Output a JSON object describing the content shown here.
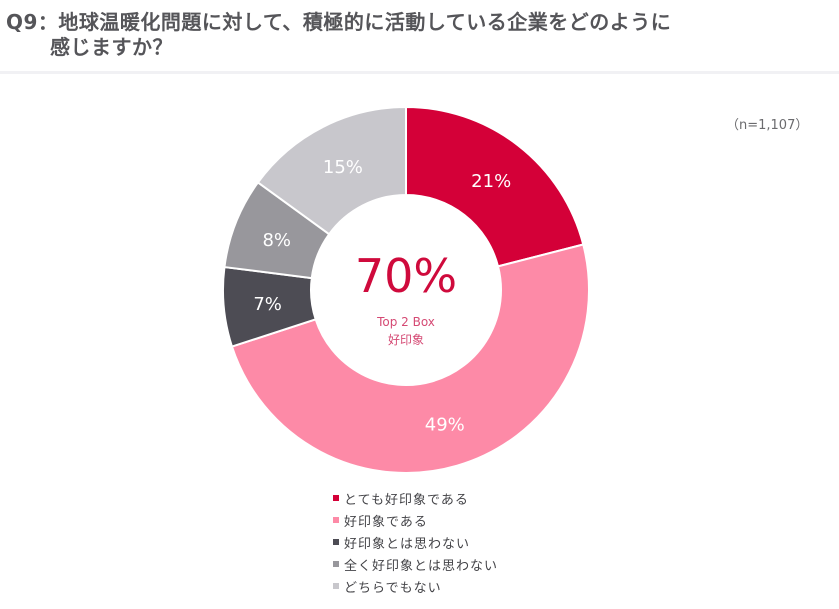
{
  "header": {
    "title_line1": "Q9：地球温暖化問題に対して、積極的に活動している企業をどのように",
    "title_line2": "感じますか？"
  },
  "sample_size": "（n=1,107）",
  "center": {
    "value": "70%",
    "line1": "Top 2 Box",
    "line2": "好印象"
  },
  "segments": [
    {
      "label": "とても好印象である",
      "value": 21,
      "text": "21%",
      "color": "#d40038"
    },
    {
      "label": "好印象である",
      "value": 49,
      "text": "49%",
      "color": "#fd8aa7"
    },
    {
      "label": "好印象とは思わない",
      "value": 7,
      "text": "7%",
      "color": "#4d4c54"
    },
    {
      "label": "全く好印象とは思わない",
      "value": 8,
      "text": "8%",
      "color": "#98979c"
    },
    {
      "label": "どちらでもない",
      "value": 15,
      "text": "15%",
      "color": "#c8c7cc"
    }
  ],
  "legend": [
    {
      "label": "とても好印象である",
      "color": "#d40038"
    },
    {
      "label": "好印象である",
      "color": "#fd8aa7"
    },
    {
      "label": "好印象とは思わない",
      "color": "#4d4c54"
    },
    {
      "label": "全く好印象とは思わない",
      "color": "#98979c"
    },
    {
      "label": "どちらでもない",
      "color": "#c8c7cc"
    }
  ],
  "chart_data": {
    "type": "pie",
    "subtype": "donut",
    "title": "Q9：地球温暖化問題に対して、積極的に活動している企業をどのように感じますか？",
    "annotation": "（n=1,107）",
    "center_text": [
      "70%",
      "Top 2 Box",
      "好印象"
    ],
    "categories": [
      "とても好印象である",
      "好印象である",
      "好印象とは思わない",
      "全く好印象とは思わない",
      "どちらでもない"
    ],
    "values": [
      21,
      49,
      7,
      8,
      15
    ],
    "unit": "%",
    "colors": [
      "#d40038",
      "#fd8aa7",
      "#4d4c54",
      "#98979c",
      "#c8c7cc"
    ],
    "legend_position": "bottom",
    "start_angle": "12 o'clock",
    "direction": "clockwise"
  }
}
